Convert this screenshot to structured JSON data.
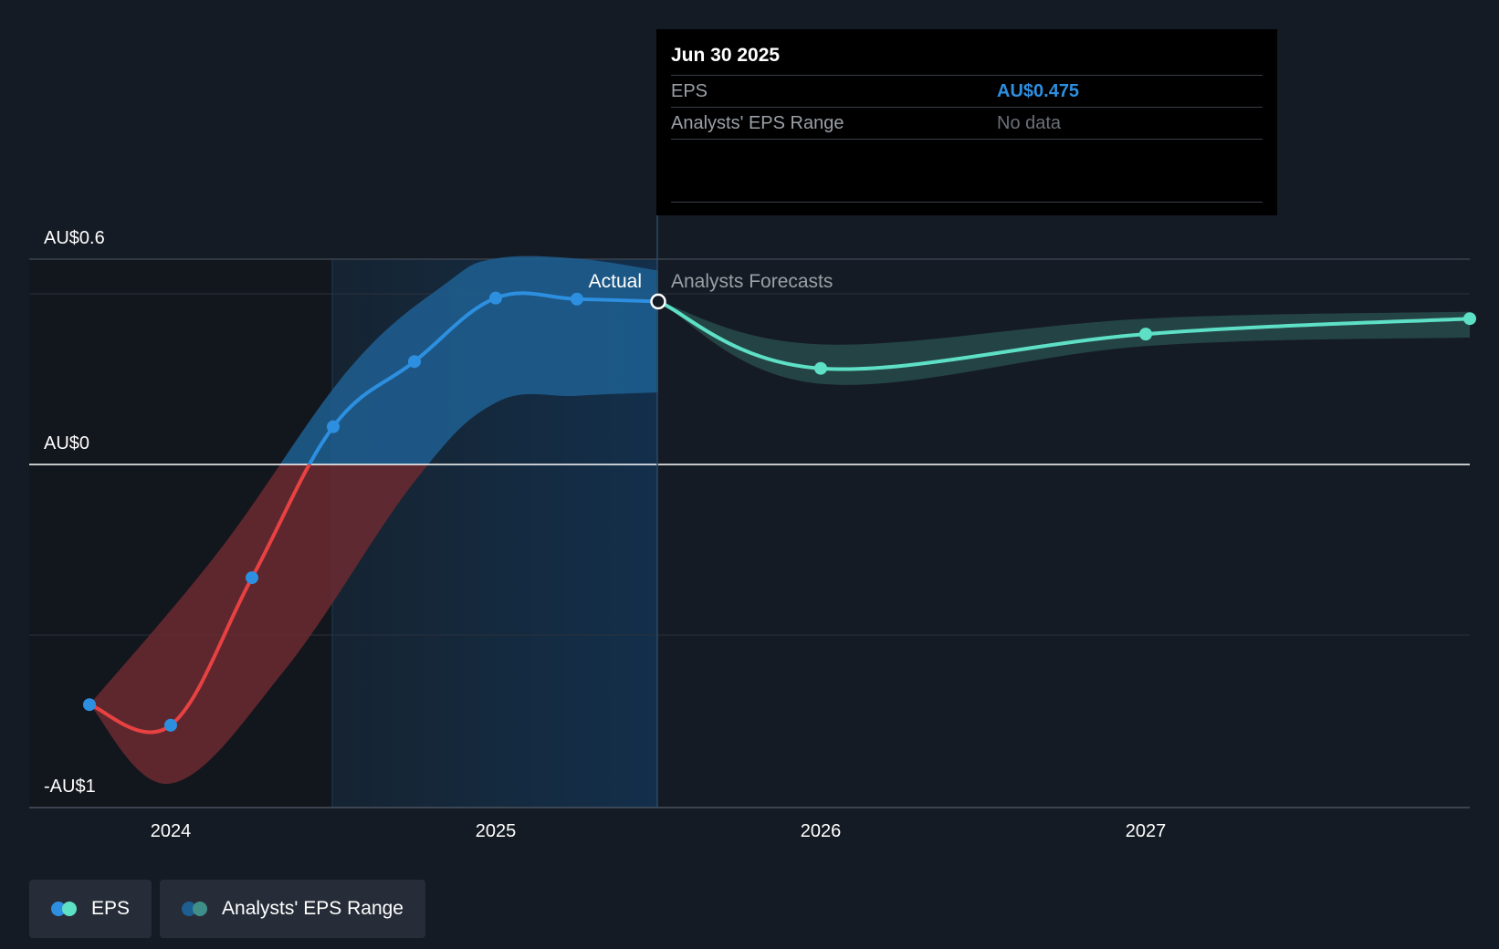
{
  "chart_data": {
    "type": "line",
    "title": "",
    "xlabel": "",
    "ylabel": "",
    "ylim": [
      -1,
      0.6
    ],
    "y_ticks": [
      {
        "value": 0.6,
        "label": "AU$0.6"
      },
      {
        "value": 0,
        "label": "AU$0"
      },
      {
        "value": -1,
        "label": "-AU$1"
      }
    ],
    "x_ticks": [
      {
        "value": 2024.0,
        "label": "2024"
      },
      {
        "value": 2025.0,
        "label": "2025"
      },
      {
        "value": 2026.0,
        "label": "2026"
      },
      {
        "value": 2027.0,
        "label": "2027"
      }
    ],
    "xlim": [
      2023.57,
      2027.99
    ],
    "divider_x": 2025.5,
    "highlight_start_x": 2024.5,
    "section_labels": {
      "actual": "Actual",
      "forecast": "Analysts Forecasts"
    },
    "series": [
      {
        "name": "EPS (Actual)",
        "x": [
          2023.75,
          2024.0,
          2024.25,
          2024.5,
          2024.75,
          2025.0,
          2025.25,
          2025.5
        ],
        "values": [
          -0.7,
          -0.76,
          -0.33,
          0.11,
          0.3,
          0.485,
          0.482,
          0.475
        ]
      },
      {
        "name": "EPS (Forecast)",
        "x": [
          2025.5,
          2026.0,
          2027.0,
          2028.0
        ],
        "values": [
          0.475,
          0.28,
          0.38,
          0.425
        ]
      },
      {
        "name": "Analysts' EPS Range",
        "x": [
          2025.5,
          2026.0,
          2027.0,
          2028.0
        ],
        "low": [
          0.475,
          0.235,
          0.345,
          0.37
        ],
        "high": [
          0.475,
          0.35,
          0.425,
          0.445
        ]
      }
    ],
    "tooltip": {
      "date": "Jun 30 2025",
      "rows": [
        {
          "label": "EPS",
          "value": "AU$0.475"
        },
        {
          "label": "Analysts' EPS Range",
          "value": "No data"
        }
      ]
    },
    "legend": [
      {
        "label": "EPS"
      },
      {
        "label": "Analysts' EPS Range"
      }
    ],
    "colors": {
      "actual_positive": "#2d8fe0",
      "actual_negative": "#e84142",
      "forecast": "#5ee0c6",
      "band_positive": "#1e5f92",
      "band_negative": "#6b2a30",
      "forecast_band": "#274a4a",
      "background": "#151b24"
    }
  }
}
